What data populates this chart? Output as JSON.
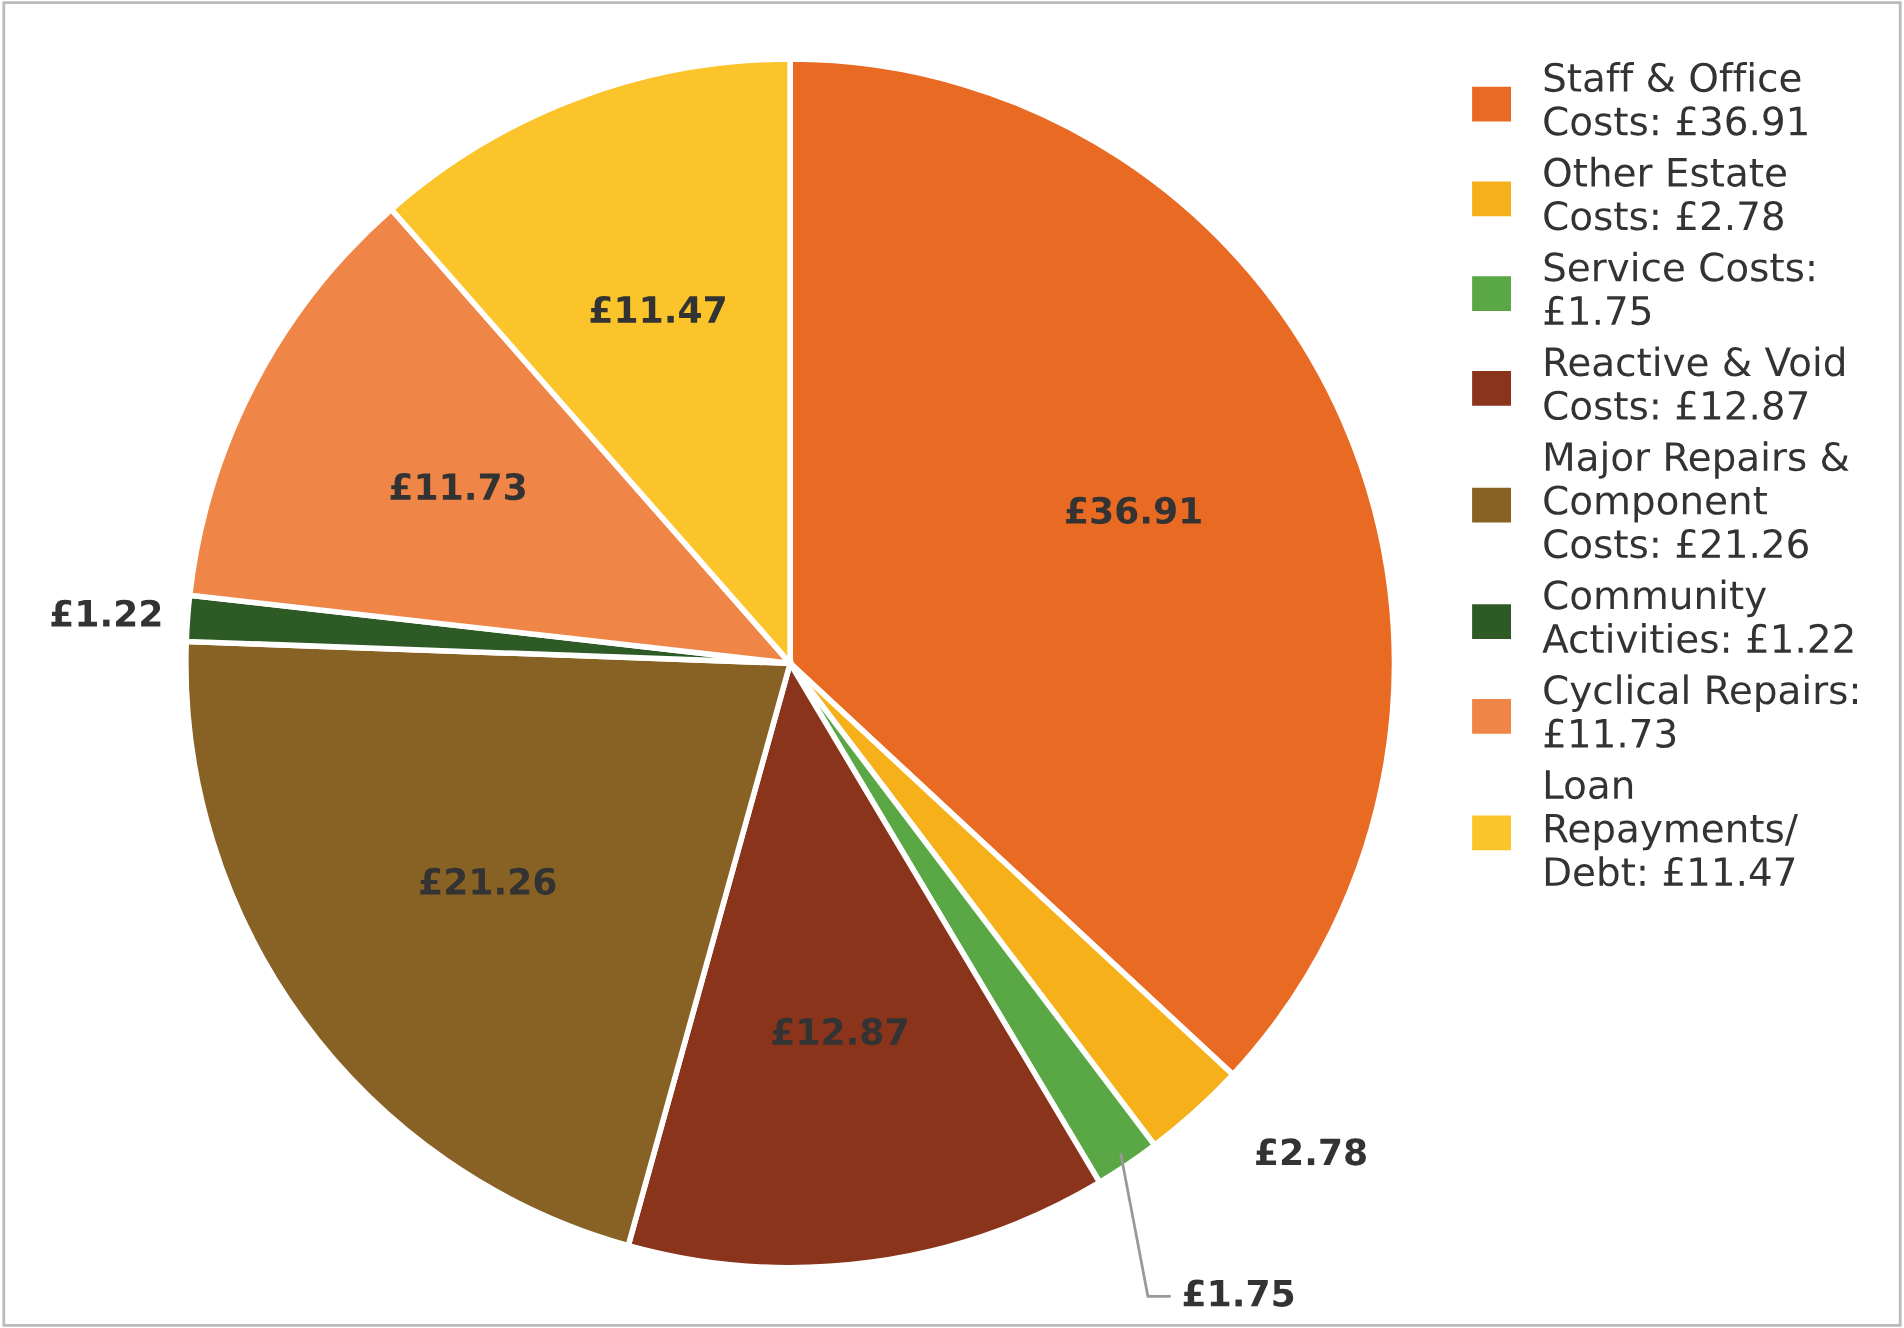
{
  "chart_data": {
    "type": "pie",
    "categories": [
      "Staff & Office\nCosts: £36.91",
      "Other Estate\nCosts: £2.78",
      "Service Costs:\n£1.75",
      "Reactive & Void\nCosts: £12.87",
      "Major Repairs &\nComponent\nCosts: £21.26",
      "Community\nActivities: £1.22",
      "Cyclical Repairs:\n£11.73",
      "Loan\nRepayments/\nDebt: £11.47"
    ],
    "values": [
      36.91,
      2.78,
      1.75,
      12.87,
      21.26,
      1.22,
      11.73,
      11.47
    ],
    "value_labels": [
      "£36.91",
      "£2.78",
      "£1.75",
      "£12.87",
      "£21.26",
      "£1.22",
      "£11.73",
      "£11.47"
    ],
    "colors": [
      "#e86a23",
      "#f5b01a",
      "#5aa845",
      "#8a341c",
      "#876224",
      "#2e5a26",
      "#ef8647",
      "#fbc42a"
    ],
    "legend": "right"
  }
}
